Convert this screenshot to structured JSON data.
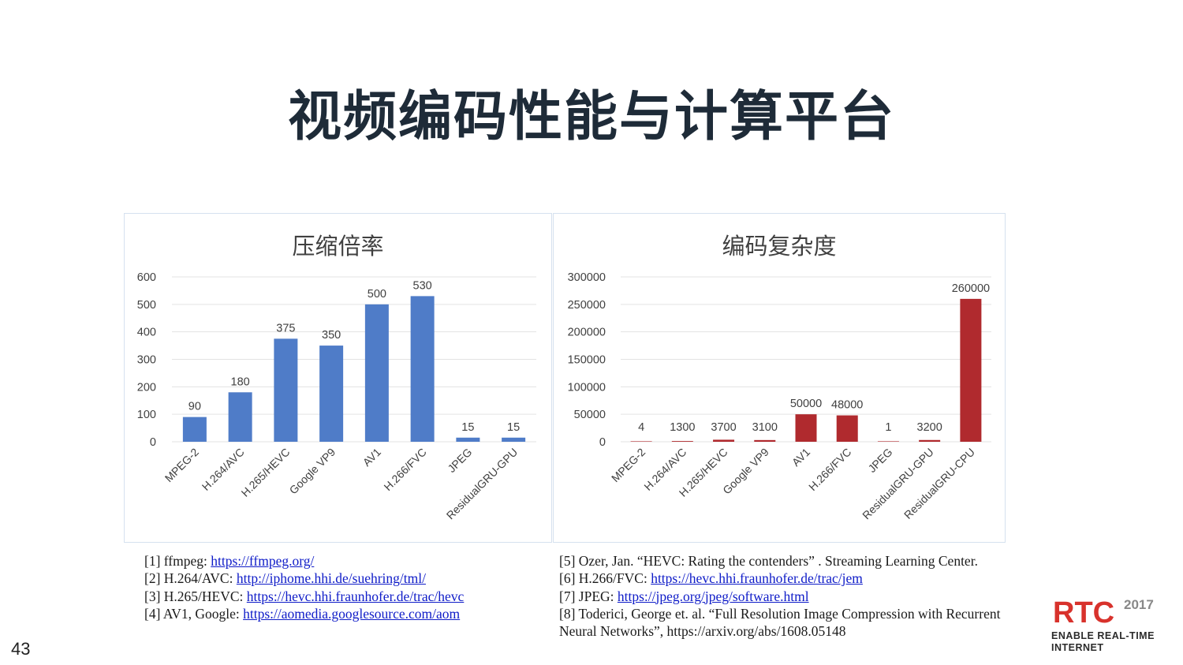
{
  "slide": {
    "title": "视频编码性能与计算平台",
    "page_number": "43"
  },
  "colors": {
    "left_bar": "#4f7cc8",
    "right_bar": "#b02a2e",
    "grid": "#e3e3e3",
    "axis_text": "#404040",
    "link": "#0f1cc8"
  },
  "chart_data": [
    {
      "type": "bar",
      "title": "压缩倍率",
      "categories": [
        "MPEG-2",
        "H.264/AVC",
        "H.265/HEVC",
        "Google VP9",
        "AV1",
        "H.266/FVC",
        "JPEG",
        "ResidualGRU-GPU"
      ],
      "values": [
        90,
        180,
        375,
        350,
        500,
        530,
        15,
        15
      ],
      "data_labels": [
        "90",
        "180",
        "375",
        "350",
        "500",
        "530",
        "15",
        "15"
      ],
      "yticks": [
        "0",
        "100",
        "200",
        "300",
        "400",
        "500",
        "600"
      ],
      "ylim": [
        0,
        600
      ],
      "grid": true,
      "legend": "none",
      "color": "#4f7cc8"
    },
    {
      "type": "bar",
      "title": "编码复杂度",
      "categories": [
        "MPEG-2",
        "H.264/AVC",
        "H.265/HEVC",
        "Google VP9",
        "AV1",
        "H.266/FVC",
        "JPEG",
        "ResidualGRU-GPU",
        "ResidualGRU-CPU"
      ],
      "values": [
        4,
        1300,
        3700,
        3100,
        50000,
        48000,
        1,
        3200,
        260000
      ],
      "data_labels": [
        "4",
        "1300",
        "3700",
        "3100",
        "50000",
        "48000",
        "1",
        "3200",
        "260000"
      ],
      "yticks": [
        "0",
        "50000",
        "100000",
        "150000",
        "200000",
        "250000",
        "300000"
      ],
      "ylim": [
        0,
        300000
      ],
      "grid": true,
      "legend": "none",
      "color": "#b02a2e"
    }
  ],
  "references_left": [
    {
      "prefix": "[1] ffmpeg: ",
      "url": "https://ffmpeg.org/"
    },
    {
      "prefix": "[2] H.264/AVC: ",
      "url": "http://iphome.hhi.de/suehring/tml/"
    },
    {
      "prefix": "[3] H.265/HEVC: ",
      "url": "https://hevc.hhi.fraunhofer.de/trac/hevc"
    },
    {
      "prefix": "[4] AV1, Google: ",
      "url": "https://aomedia.googlesource.com/aom"
    }
  ],
  "references_right": [
    {
      "text": "[5] Ozer, Jan. “HEVC: Rating the contenders” . Streaming Learning Center."
    },
    {
      "prefix": "[6] H.266/FVC: ",
      "url": "https://hevc.hhi.fraunhofer.de/trac/jem"
    },
    {
      "prefix": "[7] JPEG: ",
      "url": "https://jpeg.org/jpeg/software.html"
    },
    {
      "text": "[8] Toderici, George et. al. “Full Resolution Image Compression with Recurrent"
    },
    {
      "text": "Neural Networks”, https://arxiv.org/abs/1608.05148"
    }
  ],
  "logo": {
    "mark": "RTC",
    "year": "2017",
    "line1": "ENABLE REAL-TIME",
    "line2": "INTERNET"
  }
}
